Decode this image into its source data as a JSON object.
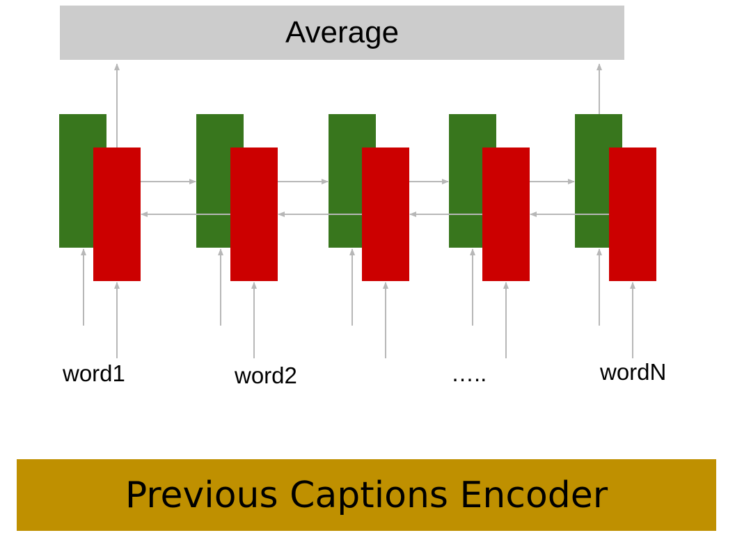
{
  "average_label": "Average",
  "encoder_label": "Previous Captions Encoder",
  "words": [
    "word1",
    "word2",
    "…..",
    "wordN"
  ],
  "colors": {
    "forward_cell": "#38761d",
    "backward_cell": "#cc0000",
    "arrow": "#b7b7b7",
    "average_box": "#cccccc",
    "encoder_box": "#bf9000"
  }
}
